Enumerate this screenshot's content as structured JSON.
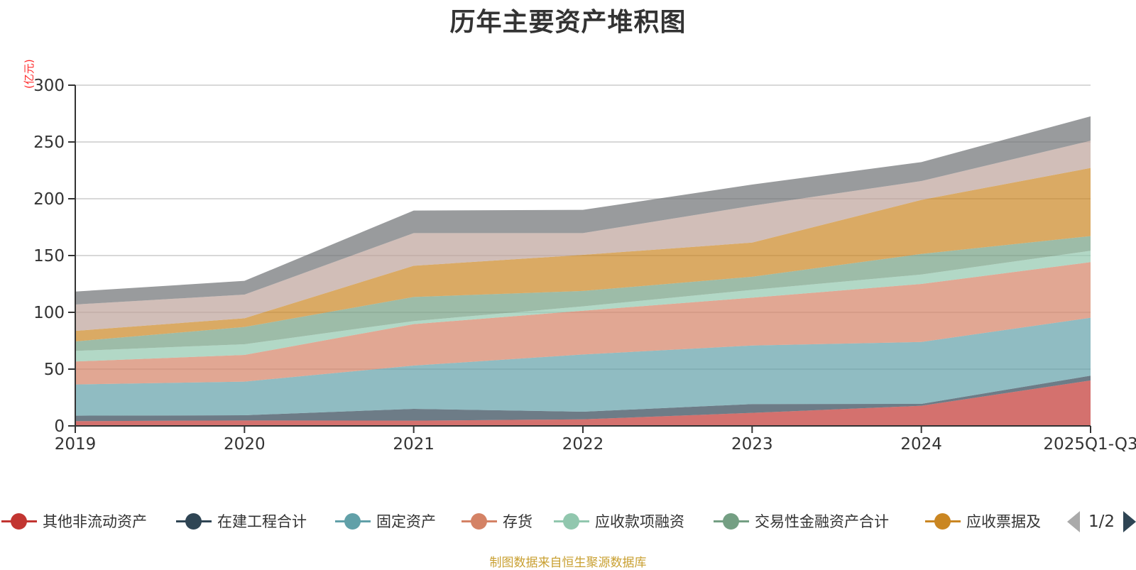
{
  "chart_data": {
    "type": "area",
    "stacked": true,
    "title": "历年主要资产堆积图",
    "ylabel": "(亿元)",
    "xlabel": "",
    "ylim": [
      0,
      300
    ],
    "yticks": [
      0,
      50,
      100,
      150,
      200,
      250,
      300
    ],
    "grid": true,
    "legend_position": "bottom",
    "categories": [
      "2019",
      "2020",
      "2021",
      "2022",
      "2023",
      "2024",
      "2025Q1-Q3"
    ],
    "series": [
      {
        "name": "其他非流动资产",
        "color": "#c23531",
        "values": [
          4.2,
          4.8,
          4.6,
          5.8,
          11.5,
          17.7,
          40.0
        ]
      },
      {
        "name": "在建工程合计",
        "color": "#2f4554",
        "values": [
          4.8,
          4.6,
          10.4,
          6.7,
          7.7,
          1.7,
          4.2
        ]
      },
      {
        "name": "固定资产",
        "color": "#61a0a8",
        "values": [
          27.5,
          29.6,
          38.1,
          50.4,
          51.6,
          54.5,
          51.0
        ]
      },
      {
        "name": "存货",
        "color": "#d48265",
        "values": [
          20.2,
          23.5,
          36.5,
          38.5,
          42.1,
          51.1,
          49.0
        ]
      },
      {
        "name": "应收款项融资",
        "color": "#91c7ae",
        "values": [
          9.3,
          9.4,
          2.7,
          3.8,
          6.9,
          8.3,
          10.0
        ]
      },
      {
        "name": "交易性金融资产合计",
        "color": "#749f83",
        "values": [
          8.4,
          15.2,
          21.2,
          13.6,
          11.5,
          18.1,
          12.9
        ]
      },
      {
        "name": "应收票据及",
        "color": "#ca8622",
        "values": [
          9.3,
          7.7,
          27.5,
          31.8,
          30.1,
          47.6,
          60.0
        ]
      },
      {
        "name": "",
        "color": "#bda29a",
        "values": [
          23.2,
          20.8,
          28.8,
          19.2,
          32.4,
          16.6,
          24.0
        ]
      },
      {
        "name": "",
        "color": "#6e7074",
        "values": [
          11.4,
          12.1,
          19.8,
          20.4,
          18.7,
          16.7,
          21.5
        ]
      }
    ]
  },
  "legend": {
    "items": [
      {
        "label": "其他非流动资产",
        "color": "#c23531"
      },
      {
        "label": "在建工程合计",
        "color": "#2f4554"
      },
      {
        "label": "固定资产",
        "color": "#61a0a8"
      },
      {
        "label": "存货",
        "color": "#d48265"
      },
      {
        "label": "应收款项融资",
        "color": "#91c7ae"
      },
      {
        "label": "交易性金融资产合计",
        "color": "#749f83"
      },
      {
        "label": "应收票据及",
        "color": "#ca8622"
      }
    ],
    "page": "1/2",
    "prev_icon": "triangle-left-icon",
    "next_icon": "triangle-right-icon"
  },
  "source_note": "制图数据来自恒生聚源数据库"
}
